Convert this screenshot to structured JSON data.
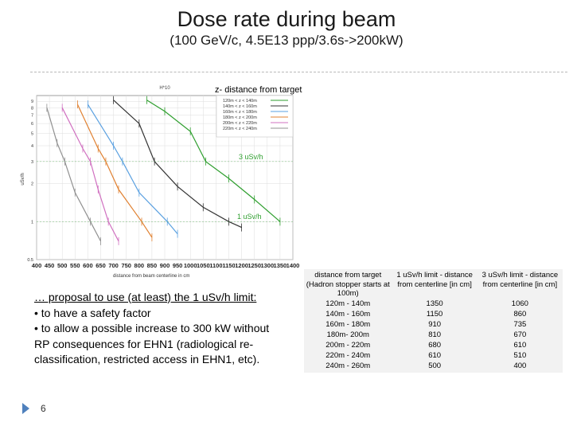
{
  "slide": {
    "title": "Dose rate during beam",
    "subtitle": "(100 GeV/c, 4.5E13 ppp/3.6s->200kW)",
    "page_number": "6"
  },
  "plot": {
    "top_label": "H*10",
    "legend_title": "z- distance from target",
    "legend_items": [
      "120m < z < 140m",
      "140m < z < 160m",
      "160m < z < 180m",
      "180m < z < 200m",
      "200m < z < 220m",
      "220m < z < 240m"
    ],
    "annotation_3": "3 uSv/h",
    "annotation_1": "1 uSv/h",
    "ylabel": "uSv/h",
    "xlabel": "distance from beam centerline in cm"
  },
  "chart_data": {
    "type": "line",
    "title": "H*10",
    "xlabel": "distance from beam centerline in cm",
    "ylabel": "uSv/h",
    "x_ticks": [
      "400",
      "450",
      "500",
      "550",
      "600",
      "650",
      "700",
      "750",
      "800",
      "850",
      "900",
      "950",
      "1000",
      "1050",
      "1100",
      "1150",
      "1200",
      "1250",
      "1300",
      "1350",
      "1400"
    ],
    "y_ticks": [
      "0.5",
      "1",
      "2",
      "3",
      "4",
      "5",
      "6",
      "7",
      "8",
      "9"
    ],
    "xlim": [
      400,
      1400
    ],
    "ylim": [
      0.5,
      10
    ],
    "yscale": "log",
    "legend_position": "top-right",
    "series": [
      {
        "name": "120m < z < 140m",
        "color": "#2e9e2e",
        "x": [
          830,
          900,
          1000,
          1060,
          1150,
          1250,
          1350
        ],
        "y": [
          9.2,
          7.5,
          5.2,
          3.0,
          2.2,
          1.5,
          1.0
        ]
      },
      {
        "name": "140m < z < 160m",
        "color": "#333333",
        "x": [
          700,
          800,
          860,
          950,
          1050,
          1150,
          1200
        ],
        "y": [
          9.2,
          6.0,
          3.0,
          1.9,
          1.3,
          1.0,
          0.9
        ]
      },
      {
        "name": "160m < z < 180m",
        "color": "#5aa0e0",
        "x": [
          600,
          700,
          735,
          800,
          910,
          950
        ],
        "y": [
          8.5,
          4.0,
          3.0,
          1.7,
          1.0,
          0.8
        ]
      },
      {
        "name": "180m < z < 200m",
        "color": "#e08030",
        "x": [
          560,
          640,
          670,
          720,
          810,
          850
        ],
        "y": [
          8.5,
          3.8,
          3.0,
          1.8,
          1.0,
          0.75
        ]
      },
      {
        "name": "200m < z < 220m",
        "color": "#d070c0",
        "x": [
          500,
          580,
          610,
          640,
          680,
          720
        ],
        "y": [
          8.0,
          3.8,
          3.0,
          1.8,
          1.0,
          0.7
        ]
      },
      {
        "name": "220m < z < 240m",
        "color": "#909090",
        "x": [
          440,
          480,
          510,
          550,
          610,
          650
        ],
        "y": [
          8.0,
          4.2,
          3.0,
          1.7,
          1.0,
          0.7
        ]
      }
    ],
    "hlines": [
      3,
      1
    ]
  },
  "proposal": {
    "line1": "… proposal to use (at least) the 1 uSv/h limit:",
    "bullet_symbol": "•",
    "bullet1": "to have a safety factor",
    "bullet2": "to allow a possible increase to 300 kW without RP consequences for EHN1 (radiological re-classification, restricted access in EHN1, etc)."
  },
  "table": {
    "headers": [
      "distance from target (Hadron stopper starts at 100m)",
      "1 uSv/h limit - distance from centerline [in cm]",
      "3 uSv/h limit - distance from centerline [in cm]"
    ],
    "rows": [
      [
        "120m - 140m",
        "1350",
        "1060"
      ],
      [
        "140m - 160m",
        "1150",
        "860"
      ],
      [
        "160m - 180m",
        "910",
        "735"
      ],
      [
        "180m- 200m",
        "810",
        "670"
      ],
      [
        "200m - 220m",
        "680",
        "610"
      ],
      [
        "220m - 240m",
        "610",
        "510"
      ],
      [
        "240m - 260m",
        "500",
        "400"
      ]
    ]
  }
}
